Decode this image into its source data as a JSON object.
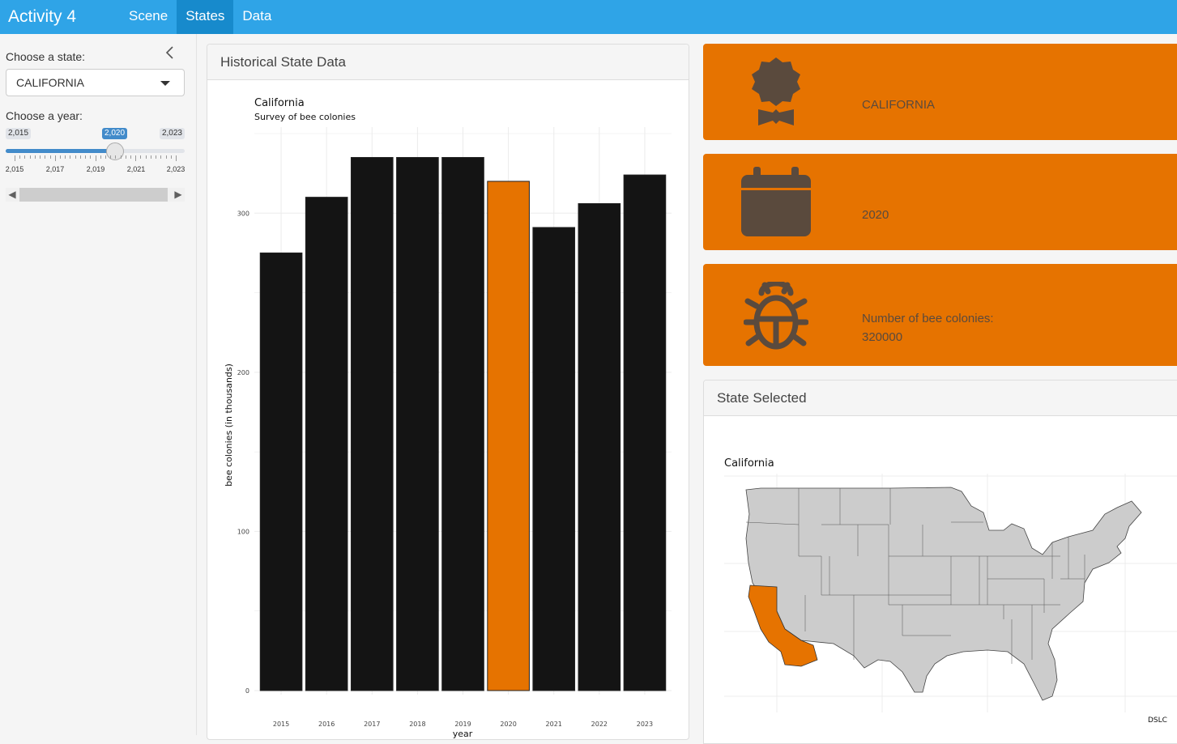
{
  "app": {
    "title": "Activity 4",
    "tabs": [
      {
        "label": "Scene"
      },
      {
        "label": "States"
      },
      {
        "label": "Data"
      }
    ]
  },
  "sidebar": {
    "state_label": "Choose a state:",
    "state_value": "CALIFORNIA",
    "year_label": "Choose a year:",
    "slider": {
      "min_label": "2,015",
      "max_label": "2,023",
      "value_label": "2,020",
      "min": 2015,
      "max": 2023,
      "value": 2020,
      "tick_labels": [
        "2,015",
        "2,017",
        "2,019",
        "2,021",
        "2,023"
      ]
    }
  },
  "historical_panel": {
    "title": "Historical State Data"
  },
  "value_boxes": [
    {
      "icon": "award-icon",
      "text": "CALIFORNIA"
    },
    {
      "icon": "calendar-icon",
      "text": "2020"
    },
    {
      "icon": "bug-icon",
      "line1": "Number of bee colonies:",
      "line2": "320000"
    }
  ],
  "map_panel": {
    "title": "State Selected",
    "map_title": "California",
    "caption": "DSLC"
  },
  "colors": {
    "accent": "#e67300",
    "navbar": "#2fa4e7",
    "bar": "#141414"
  },
  "chart_data": {
    "type": "bar",
    "title": "California",
    "subtitle": "Survey of bee colonies",
    "xlabel": "year",
    "ylabel": "bee colonies (in thousands)",
    "categories": [
      "2015",
      "2016",
      "2017",
      "2018",
      "2019",
      "2020",
      "2021",
      "2022",
      "2023"
    ],
    "values": [
      275,
      310,
      335,
      335,
      335,
      320,
      291,
      306,
      324
    ],
    "highlight": "2020",
    "yticks": [
      0,
      100,
      200,
      300
    ],
    "ylim": [
      0,
      350
    ]
  }
}
